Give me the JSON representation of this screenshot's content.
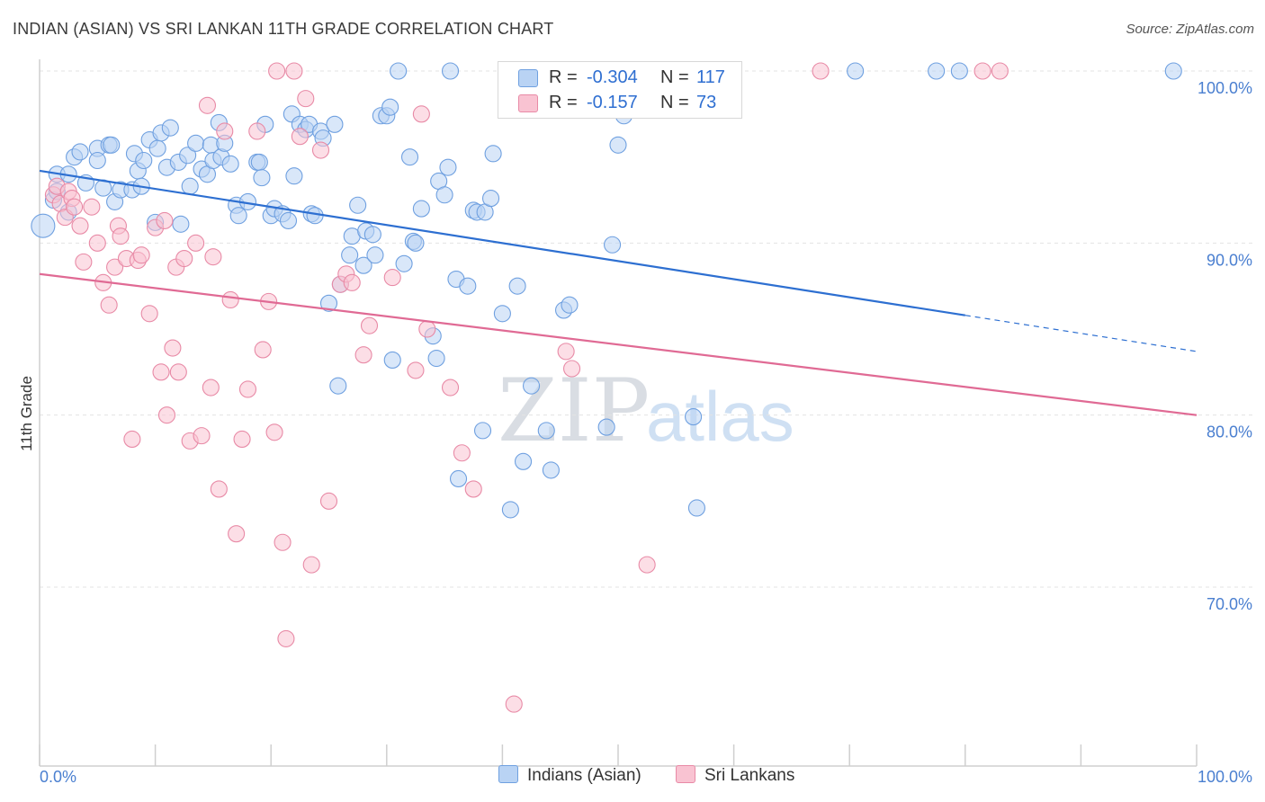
{
  "title": "INDIAN (ASIAN) VS SRI LANKAN 11TH GRADE CORRELATION CHART",
  "source": "Source: ZipAtlas.com",
  "watermark": {
    "zip": "ZIP",
    "atlas": "atlas"
  },
  "stats": {
    "r_label": "R =",
    "n_label": "N =",
    "rows": [
      {
        "r": "-0.304",
        "n": "117",
        "fill": "#b9d3f4",
        "stroke": "#6fa0e0"
      },
      {
        "r": "-0.157",
        "n": "73",
        "fill": "#f9c3d2",
        "stroke": "#e88aa6"
      }
    ]
  },
  "legend": {
    "items": [
      {
        "label": "Indians (Asian)",
        "fill": "#b9d3f4",
        "stroke": "#6fa0e0"
      },
      {
        "label": "Sri Lankans",
        "fill": "#f9c3d2",
        "stroke": "#e88aa6"
      }
    ]
  },
  "chart_data": {
    "type": "scatter",
    "title": "INDIAN (ASIAN) VS SRI LANKAN 11TH GRADE CORRELATION CHART",
    "xlabel": "",
    "ylabel": "11th Grade",
    "xlim": [
      0,
      100
    ],
    "ylim": [
      62,
      100
    ],
    "x_tick_labels": [
      "0.0%",
      "100.0%"
    ],
    "y_ticks": [
      {
        "value": 70,
        "label": "70.0%"
      },
      {
        "value": 80,
        "label": "80.0%"
      },
      {
        "value": 90,
        "label": "90.0%"
      },
      {
        "value": 100,
        "label": "100.0%"
      }
    ],
    "grid": true,
    "series": [
      {
        "name": "Indians (Asian)",
        "color": "#6fa0e0",
        "fill": "#b9d3f4",
        "line_color": "#2d6fd1",
        "trend": {
          "x0": 0,
          "y0": 94.2,
          "x1": 80,
          "y1": 85.8,
          "dash_to_x": 100,
          "dash_to_y": 83.7
        },
        "points": [
          [
            0.3,
            91
          ],
          [
            1.2,
            92.5
          ],
          [
            1.5,
            93
          ],
          [
            1.5,
            94
          ],
          [
            2.5,
            94
          ],
          [
            2.5,
            91.8
          ],
          [
            3,
            95
          ],
          [
            3.5,
            95.3
          ],
          [
            4,
            93.5
          ],
          [
            5,
            95.5
          ],
          [
            5,
            94.8
          ],
          [
            5.5,
            93.2
          ],
          [
            6,
            95.7
          ],
          [
            6.2,
            95.7
          ],
          [
            6.5,
            92.4
          ],
          [
            7,
            93.1
          ],
          [
            8,
            93.1
          ],
          [
            8.2,
            95.2
          ],
          [
            8.5,
            94.2
          ],
          [
            8.8,
            93.3
          ],
          [
            9,
            94.8
          ],
          [
            9.5,
            96
          ],
          [
            10,
            91.2
          ],
          [
            10.2,
            95.5
          ],
          [
            10.5,
            96.4
          ],
          [
            11,
            94.4
          ],
          [
            11.3,
            96.7
          ],
          [
            12,
            94.7
          ],
          [
            12.2,
            91.1
          ],
          [
            12.8,
            95.1
          ],
          [
            13,
            93.3
          ],
          [
            13.5,
            95.8
          ],
          [
            14,
            94.3
          ],
          [
            14.5,
            94
          ],
          [
            14.8,
            95.7
          ],
          [
            15,
            94.8
          ],
          [
            15.5,
            97
          ],
          [
            15.7,
            95
          ],
          [
            16,
            95.8
          ],
          [
            16.5,
            94.6
          ],
          [
            17,
            92.2
          ],
          [
            17.2,
            91.6
          ],
          [
            18,
            92.4
          ],
          [
            18.8,
            94.7
          ],
          [
            19,
            94.7
          ],
          [
            19.2,
            93.8
          ],
          [
            19.5,
            96.9
          ],
          [
            20,
            91.6
          ],
          [
            20.3,
            92
          ],
          [
            21,
            91.7
          ],
          [
            21.5,
            91.3
          ],
          [
            21.8,
            97.5
          ],
          [
            22,
            93.9
          ],
          [
            22.5,
            96.9
          ],
          [
            23,
            96.6
          ],
          [
            23.3,
            96.9
          ],
          [
            23.5,
            91.7
          ],
          [
            23.8,
            91.6
          ],
          [
            24.3,
            96.5
          ],
          [
            24.5,
            96.1
          ],
          [
            25,
            86.5
          ],
          [
            25.5,
            96.9
          ],
          [
            25.8,
            81.7
          ],
          [
            26,
            87.6
          ],
          [
            26.8,
            89.3
          ],
          [
            27,
            90.4
          ],
          [
            27.5,
            92.2
          ],
          [
            28,
            88.7
          ],
          [
            28.2,
            90.7
          ],
          [
            28.8,
            90.5
          ],
          [
            29,
            89.3
          ],
          [
            29.5,
            97.4
          ],
          [
            30,
            97.4
          ],
          [
            30.3,
            97.9
          ],
          [
            30.5,
            83.2
          ],
          [
            31,
            100
          ],
          [
            31.5,
            88.8
          ],
          [
            32,
            95
          ],
          [
            32.3,
            90.1
          ],
          [
            32.5,
            90
          ],
          [
            33,
            92
          ],
          [
            34,
            84.6
          ],
          [
            34.3,
            83.3
          ],
          [
            34.5,
            93.6
          ],
          [
            35,
            92.8
          ],
          [
            35.3,
            94.4
          ],
          [
            35.5,
            100
          ],
          [
            36,
            87.9
          ],
          [
            36.2,
            76.3
          ],
          [
            37,
            87.5
          ],
          [
            37.5,
            91.9
          ],
          [
            37.8,
            91.8
          ],
          [
            38.3,
            79.1
          ],
          [
            38.5,
            91.8
          ],
          [
            39,
            92.6
          ],
          [
            39.2,
            95.2
          ],
          [
            40,
            85.9
          ],
          [
            40.7,
            74.5
          ],
          [
            41.3,
            87.5
          ],
          [
            41.8,
            77.3
          ],
          [
            42.5,
            81.7
          ],
          [
            43.8,
            79.1
          ],
          [
            44.2,
            76.8
          ],
          [
            45.3,
            86.1
          ],
          [
            45.8,
            86.4
          ],
          [
            46,
            100
          ],
          [
            46.5,
            100
          ],
          [
            49,
            79.3
          ],
          [
            49.5,
            89.9
          ],
          [
            50,
            95.7
          ],
          [
            50.5,
            97.4
          ],
          [
            56.5,
            79.9
          ],
          [
            56.8,
            74.6
          ],
          [
            70.5,
            100
          ],
          [
            77.5,
            100
          ],
          [
            79.5,
            100
          ],
          [
            98,
            100
          ]
        ]
      },
      {
        "name": "Sri Lankans",
        "color": "#e88aa6",
        "fill": "#f9c3d2",
        "line_color": "#e06a94",
        "trend": {
          "x0": 0,
          "y0": 88.2,
          "x1": 100,
          "y1": 80
        },
        "points": [
          [
            1.2,
            92.8
          ],
          [
            1.5,
            93.3
          ],
          [
            1.8,
            92.3
          ],
          [
            2.2,
            91.5
          ],
          [
            2.5,
            93
          ],
          [
            2.8,
            92.6
          ],
          [
            3,
            92.1
          ],
          [
            3.5,
            91
          ],
          [
            3.8,
            88.9
          ],
          [
            4.5,
            92.1
          ],
          [
            5,
            90
          ],
          [
            5.5,
            87.7
          ],
          [
            6,
            86.4
          ],
          [
            6.5,
            88.6
          ],
          [
            6.8,
            91
          ],
          [
            7,
            90.4
          ],
          [
            7.5,
            89.1
          ],
          [
            8,
            78.6
          ],
          [
            8.5,
            89
          ],
          [
            8.8,
            89.3
          ],
          [
            9.5,
            85.9
          ],
          [
            10,
            90.9
          ],
          [
            10.5,
            82.5
          ],
          [
            10.8,
            91.3
          ],
          [
            11,
            80
          ],
          [
            11.5,
            83.9
          ],
          [
            11.8,
            88.6
          ],
          [
            12,
            82.5
          ],
          [
            12.5,
            89.1
          ],
          [
            13,
            78.5
          ],
          [
            13.5,
            90
          ],
          [
            14,
            78.8
          ],
          [
            14.5,
            98
          ],
          [
            14.8,
            81.6
          ],
          [
            15,
            89.2
          ],
          [
            15.5,
            75.7
          ],
          [
            16,
            96.5
          ],
          [
            16.5,
            86.7
          ],
          [
            17,
            73.1
          ],
          [
            17.5,
            78.6
          ],
          [
            18,
            81.5
          ],
          [
            18.8,
            96.5
          ],
          [
            19.3,
            83.8
          ],
          [
            19.8,
            86.6
          ],
          [
            20.3,
            79
          ],
          [
            20.5,
            100
          ],
          [
            21,
            72.6
          ],
          [
            21.3,
            67
          ],
          [
            22,
            100
          ],
          [
            22.5,
            96.2
          ],
          [
            23,
            98.4
          ],
          [
            23.5,
            71.3
          ],
          [
            24.3,
            95.4
          ],
          [
            25,
            75
          ],
          [
            26,
            87.6
          ],
          [
            26.5,
            88.2
          ],
          [
            27,
            87.7
          ],
          [
            28,
            83.5
          ],
          [
            28.5,
            85.2
          ],
          [
            30.5,
            88
          ],
          [
            32.5,
            82.6
          ],
          [
            33,
            97.5
          ],
          [
            33.5,
            85
          ],
          [
            35.5,
            81.6
          ],
          [
            36.5,
            77.8
          ],
          [
            37.5,
            75.7
          ],
          [
            41,
            63.2
          ],
          [
            45.5,
            83.7
          ],
          [
            46,
            82.7
          ],
          [
            52.5,
            71.3
          ],
          [
            67.5,
            100
          ],
          [
            81.5,
            100
          ],
          [
            83,
            100
          ]
        ]
      }
    ]
  }
}
